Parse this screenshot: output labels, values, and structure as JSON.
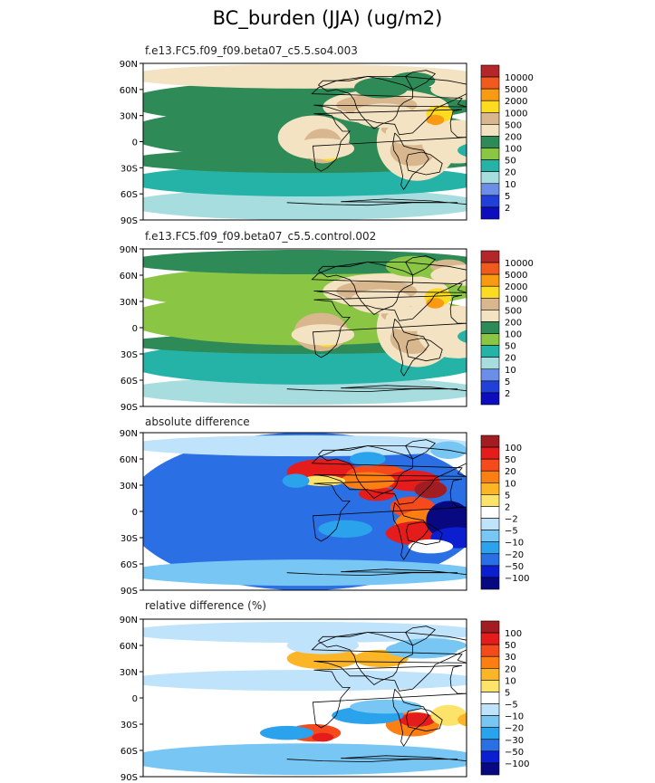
{
  "title": "BC_burden (JJA) (ug/m2)",
  "chart_data": [
    {
      "type": "heatmap",
      "panel_title": "f.e13.FC5.f09_f09.beta07_c5.5.so4.003",
      "y_ticks": [
        "90N",
        "60N",
        "30N",
        "0",
        "30S",
        "60S",
        "90S"
      ],
      "ylim": [
        -90,
        90
      ],
      "xlim": [
        0,
        360
      ],
      "levels": [
        "10000",
        "5000",
        "2000",
        "1000",
        "500",
        "200",
        "100",
        "50",
        "20",
        "10",
        "5",
        "2"
      ],
      "colors": [
        "#b3262a",
        "#f05a1e",
        "#f99b12",
        "#fddb21",
        "#d9b78e",
        "#f3e3c2",
        "#2e8b57",
        "#8ac644",
        "#24b3a6",
        "#a8dde0",
        "#6b8fe8",
        "#2040d8",
        "#0d0dbe"
      ]
    },
    {
      "type": "heatmap",
      "panel_title": "f.e13.FC5.f09_f09.beta07_c5.5.control.002",
      "y_ticks": [
        "90N",
        "60N",
        "30N",
        "0",
        "30S",
        "60S",
        "90S"
      ],
      "ylim": [
        -90,
        90
      ],
      "xlim": [
        0,
        360
      ],
      "levels": [
        "10000",
        "5000",
        "2000",
        "1000",
        "500",
        "200",
        "100",
        "50",
        "20",
        "10",
        "5",
        "2"
      ],
      "colors": [
        "#b3262a",
        "#f05a1e",
        "#f99b12",
        "#fddb21",
        "#d9b78e",
        "#f3e3c2",
        "#2e8b57",
        "#8ac644",
        "#24b3a6",
        "#a8dde0",
        "#6b8fe8",
        "#2040d8",
        "#0d0dbe"
      ]
    },
    {
      "type": "heatmap",
      "panel_title": "absolute difference",
      "y_ticks": [
        "90N",
        "60N",
        "30N",
        "0",
        "30S",
        "60S",
        "90S"
      ],
      "ylim": [
        -90,
        90
      ],
      "xlim": [
        0,
        360
      ],
      "levels": [
        "100",
        "50",
        "20",
        "10",
        "5",
        "2",
        "−2",
        "−5",
        "−10",
        "−20",
        "−50",
        "−100"
      ],
      "colors": [
        "#a11d21",
        "#e41c1c",
        "#f44a1c",
        "#fc7f14",
        "#fdb528",
        "#fde36a",
        "#ffffff",
        "#bfe3fb",
        "#77c6f3",
        "#2aa2ec",
        "#2b6fe5",
        "#0b1fd0",
        "#080880"
      ]
    },
    {
      "type": "heatmap",
      "panel_title": "relative difference (%)",
      "y_ticks": [
        "90N",
        "60N",
        "30N",
        "0",
        "30S",
        "60S",
        "90S"
      ],
      "ylim": [
        -90,
        90
      ],
      "xlim": [
        0,
        360
      ],
      "levels": [
        "100",
        "50",
        "30",
        "20",
        "10",
        "5",
        "−5",
        "−10",
        "−20",
        "−30",
        "−50",
        "−100"
      ],
      "colors": [
        "#a11d21",
        "#e41c1c",
        "#f44a1c",
        "#fc7f14",
        "#fdb528",
        "#fde36a",
        "#ffffff",
        "#bfe3fb",
        "#77c6f3",
        "#2aa2ec",
        "#2b6fe5",
        "#0b1fd0",
        "#080880"
      ]
    }
  ]
}
